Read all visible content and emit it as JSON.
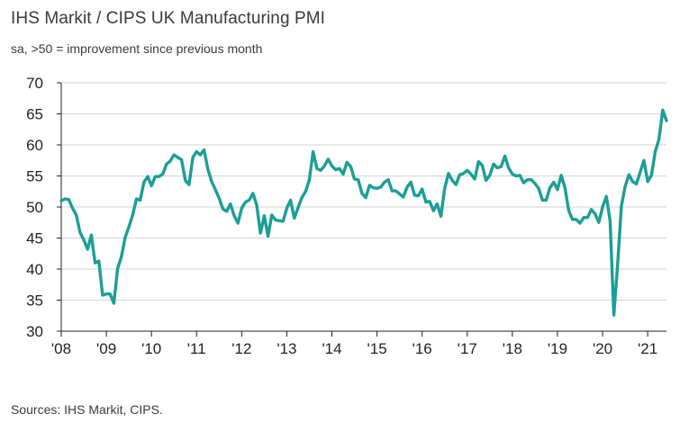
{
  "header": {
    "title": "IHS Markit / CIPS UK Manufacturing PMI",
    "subtitle": "sa, >50 = improvement since previous month"
  },
  "footer": {
    "source": "Sources: IHS Markit, CIPS."
  },
  "colors": {
    "line": "#1b9e96",
    "grid": "#d9d9d9",
    "axis": "#231f20"
  },
  "chart_data": {
    "type": "line",
    "title": "IHS Markit / CIPS UK Manufacturing PMI",
    "subtitle": "sa, >50 = improvement since previous month",
    "xlabel": "",
    "ylabel": "",
    "ylim": [
      30,
      70
    ],
    "yticks": [
      30,
      35,
      40,
      45,
      50,
      55,
      60,
      65,
      70
    ],
    "xticks": [
      "'08",
      "'09",
      "'10",
      "'11",
      "'12",
      "'13",
      "'14",
      "'15",
      "'16",
      "'17",
      "'18",
      "'19",
      "'20",
      "'21"
    ],
    "xlim": [
      "2008-01",
      "2021-06"
    ],
    "grid": "horizontal",
    "legend": "none",
    "series": [
      {
        "name": "",
        "x": [
          "2008-01",
          "2008-02",
          "2008-03",
          "2008-04",
          "2008-05",
          "2008-06",
          "2008-07",
          "2008-08",
          "2008-09",
          "2008-10",
          "2008-11",
          "2008-12",
          "2009-01",
          "2009-02",
          "2009-03",
          "2009-04",
          "2009-05",
          "2009-06",
          "2009-07",
          "2009-08",
          "2009-09",
          "2009-10",
          "2009-11",
          "2009-12",
          "2010-01",
          "2010-02",
          "2010-03",
          "2010-04",
          "2010-05",
          "2010-06",
          "2010-07",
          "2010-08",
          "2010-09",
          "2010-10",
          "2010-11",
          "2010-12",
          "2011-01",
          "2011-02",
          "2011-03",
          "2011-04",
          "2011-05",
          "2011-06",
          "2011-07",
          "2011-08",
          "2011-09",
          "2011-10",
          "2011-11",
          "2011-12",
          "2012-01",
          "2012-02",
          "2012-03",
          "2012-04",
          "2012-05",
          "2012-06",
          "2012-07",
          "2012-08",
          "2012-09",
          "2012-10",
          "2012-11",
          "2012-12",
          "2013-01",
          "2013-02",
          "2013-03",
          "2013-04",
          "2013-05",
          "2013-06",
          "2013-07",
          "2013-08",
          "2013-09",
          "2013-10",
          "2013-11",
          "2013-12",
          "2014-01",
          "2014-02",
          "2014-03",
          "2014-04",
          "2014-05",
          "2014-06",
          "2014-07",
          "2014-08",
          "2014-09",
          "2014-10",
          "2014-11",
          "2014-12",
          "2015-01",
          "2015-02",
          "2015-03",
          "2015-04",
          "2015-05",
          "2015-06",
          "2015-07",
          "2015-08",
          "2015-09",
          "2015-10",
          "2015-11",
          "2015-12",
          "2016-01",
          "2016-02",
          "2016-03",
          "2016-04",
          "2016-05",
          "2016-06",
          "2016-07",
          "2016-08",
          "2016-09",
          "2016-10",
          "2016-11",
          "2016-12",
          "2017-01",
          "2017-02",
          "2017-03",
          "2017-04",
          "2017-05",
          "2017-06",
          "2017-07",
          "2017-08",
          "2017-09",
          "2017-10",
          "2017-11",
          "2017-12",
          "2018-01",
          "2018-02",
          "2018-03",
          "2018-04",
          "2018-05",
          "2018-06",
          "2018-07",
          "2018-08",
          "2018-09",
          "2018-10",
          "2018-11",
          "2018-12",
          "2019-01",
          "2019-02",
          "2019-03",
          "2019-04",
          "2019-05",
          "2019-06",
          "2019-07",
          "2019-08",
          "2019-09",
          "2019-10",
          "2019-11",
          "2019-12",
          "2020-01",
          "2020-02",
          "2020-03",
          "2020-04",
          "2020-05",
          "2020-06",
          "2020-07",
          "2020-08",
          "2020-09",
          "2020-10",
          "2020-11",
          "2020-12",
          "2021-01",
          "2021-02",
          "2021-03",
          "2021-04",
          "2021-05",
          "2021-06"
        ],
        "values": [
          51.0,
          51.3,
          51.2,
          49.8,
          48.7,
          45.9,
          44.7,
          43.2,
          45.5,
          41.0,
          41.3,
          35.8,
          36.0,
          36.0,
          34.5,
          40.1,
          42.0,
          45.1,
          46.8,
          48.7,
          51.3,
          51.1,
          54.0,
          54.9,
          53.4,
          54.9,
          54.9,
          55.3,
          56.9,
          57.4,
          58.4,
          58.0,
          57.6,
          54.3,
          53.6,
          58.0,
          58.9,
          58.4,
          59.2,
          56.1,
          54.1,
          52.8,
          51.4,
          49.7,
          49.3,
          50.5,
          48.6,
          47.4,
          49.8,
          50.8,
          51.1,
          52.2,
          50.3,
          45.8,
          48.6,
          45.3,
          48.7,
          47.9,
          47.8,
          47.7,
          49.8,
          51.1,
          48.2,
          49.9,
          51.5,
          52.5,
          54.4,
          58.9,
          56.2,
          55.9,
          56.6,
          57.7,
          56.6,
          56.0,
          56.2,
          55.3,
          57.2,
          56.5,
          54.5,
          54.4,
          52.2,
          51.5,
          53.5,
          53.1,
          53.0,
          53.2,
          54.0,
          54.4,
          52.6,
          52.6,
          52.1,
          51.6,
          53.2,
          54.0,
          51.9,
          51.8,
          52.9,
          50.8,
          50.9,
          49.4,
          50.5,
          48.5,
          53.0,
          55.4,
          54.3,
          53.6,
          55.2,
          55.4,
          55.9,
          55.3,
          54.5,
          57.3,
          56.7,
          54.3,
          55.1,
          56.9,
          56.3,
          56.5,
          58.2,
          56.3,
          55.3,
          55.0,
          55.1,
          53.9,
          54.4,
          54.4,
          53.8,
          53.0,
          51.1,
          51.1,
          53.1,
          54.0,
          52.8,
          55.1,
          53.1,
          49.4,
          48.0,
          48.0,
          47.4,
          48.3,
          48.3,
          49.6,
          48.9,
          47.5,
          50.0,
          51.7,
          47.8,
          32.6,
          40.7,
          50.1,
          53.3,
          55.2,
          54.1,
          53.7,
          55.6,
          57.5,
          54.1,
          55.1,
          58.9,
          60.9,
          65.6,
          63.9
        ]
      }
    ]
  }
}
